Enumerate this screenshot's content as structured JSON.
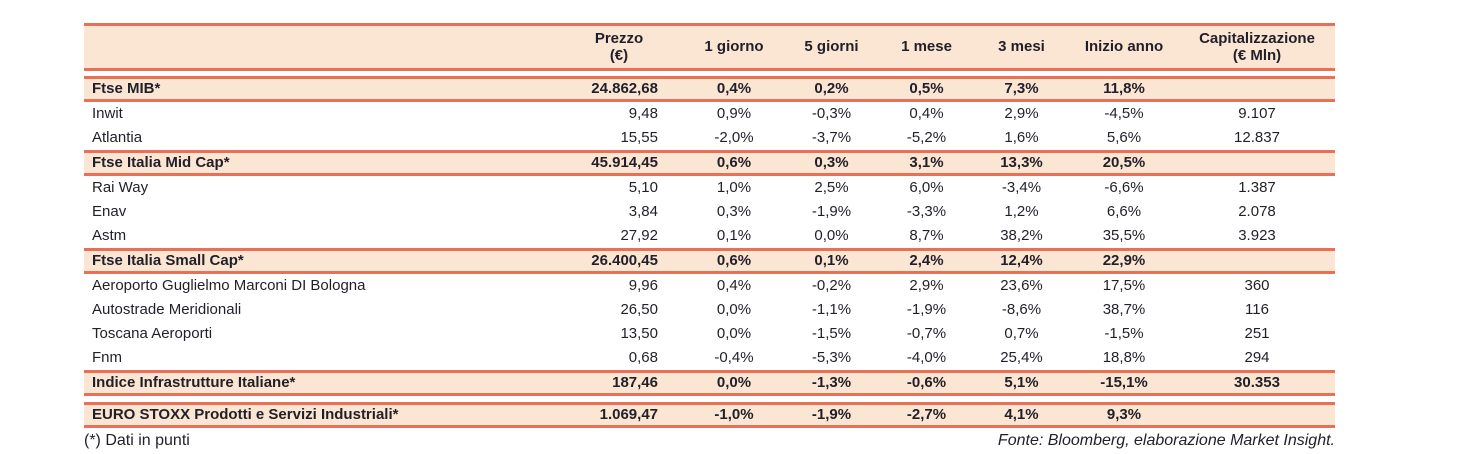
{
  "colors": {
    "accent_border": "#E96F56",
    "band_background": "#FBE5D3",
    "text": "#211F29"
  },
  "table": {
    "columns": [
      {
        "key": "name",
        "lines": [
          " "
        ]
      },
      {
        "key": "prezzo",
        "lines": [
          "Prezzo",
          "(€)"
        ]
      },
      {
        "key": "g1",
        "lines": [
          "1 giorno"
        ]
      },
      {
        "key": "g5",
        "lines": [
          "5 giorni"
        ]
      },
      {
        "key": "m1",
        "lines": [
          "1 mese"
        ]
      },
      {
        "key": "m3",
        "lines": [
          "3 mesi"
        ]
      },
      {
        "key": "ytd",
        "lines": [
          "Inizio anno"
        ]
      },
      {
        "key": "cap",
        "lines": [
          "Capitalizzazione",
          "(€ Mln)"
        ]
      }
    ],
    "rows": [
      {
        "type": "index",
        "name": "Ftse MIB*",
        "prezzo": "24.862,68",
        "g1": "0,4%",
        "g5": "0,2%",
        "m1": "0,5%",
        "m3": "7,3%",
        "ytd": "11,8%",
        "cap": ""
      },
      {
        "type": "stock",
        "name": "Inwit",
        "prezzo": "9,48",
        "g1": "0,9%",
        "g5": "-0,3%",
        "m1": "0,4%",
        "m3": "2,9%",
        "ytd": "-4,5%",
        "cap": "9.107"
      },
      {
        "type": "stock",
        "name": "Atlantia",
        "prezzo": "15,55",
        "g1": "-2,0%",
        "g5": "-3,7%",
        "m1": "-5,2%",
        "m3": "1,6%",
        "ytd": "5,6%",
        "cap": "12.837"
      },
      {
        "type": "index",
        "name": "Ftse Italia Mid Cap*",
        "prezzo": "45.914,45",
        "g1": "0,6%",
        "g5": "0,3%",
        "m1": "3,1%",
        "m3": "13,3%",
        "ytd": "20,5%",
        "cap": ""
      },
      {
        "type": "stock",
        "name": "Rai Way",
        "prezzo": "5,10",
        "g1": "1,0%",
        "g5": "2,5%",
        "m1": "6,0%",
        "m3": "-3,4%",
        "ytd": "-6,6%",
        "cap": "1.387"
      },
      {
        "type": "stock",
        "name": "Enav",
        "prezzo": "3,84",
        "g1": "0,3%",
        "g5": "-1,9%",
        "m1": "-3,3%",
        "m3": "1,2%",
        "ytd": "6,6%",
        "cap": "2.078"
      },
      {
        "type": "stock",
        "name": "Astm",
        "prezzo": "27,92",
        "g1": "0,1%",
        "g5": "0,0%",
        "m1": "8,7%",
        "m3": "38,2%",
        "ytd": "35,5%",
        "cap": "3.923"
      },
      {
        "type": "index",
        "name": "Ftse Italia Small Cap*",
        "prezzo": "26.400,45",
        "g1": "0,6%",
        "g5": "0,1%",
        "m1": "2,4%",
        "m3": "12,4%",
        "ytd": "22,9%",
        "cap": ""
      },
      {
        "type": "stock",
        "name": "Aeroporto Guglielmo Marconi DI Bologna",
        "prezzo": "9,96",
        "g1": "0,4%",
        "g5": "-0,2%",
        "m1": "2,9%",
        "m3": "23,6%",
        "ytd": "17,5%",
        "cap": "360"
      },
      {
        "type": "stock",
        "name": "Autostrade Meridionali",
        "prezzo": "26,50",
        "g1": "0,0%",
        "g5": "-1,1%",
        "m1": "-1,9%",
        "m3": "-8,6%",
        "ytd": "38,7%",
        "cap": "116"
      },
      {
        "type": "stock",
        "name": "Toscana Aeroporti",
        "prezzo": "13,50",
        "g1": "0,0%",
        "g5": "-1,5%",
        "m1": "-0,7%",
        "m3": "0,7%",
        "ytd": "-1,5%",
        "cap": "251"
      },
      {
        "type": "stock",
        "name": "Fnm",
        "prezzo": "0,68",
        "g1": "-0,4%",
        "g5": "-5,3%",
        "m1": "-4,0%",
        "m3": "25,4%",
        "ytd": "18,8%",
        "cap": "294"
      },
      {
        "type": "index",
        "name": "Indice Infrastrutture Italiane*",
        "prezzo": "187,46",
        "g1": "0,0%",
        "g5": "-1,3%",
        "m1": "-0,6%",
        "m3": "5,1%",
        "ytd": "-15,1%",
        "cap": "30.353"
      },
      {
        "type": "spacer"
      },
      {
        "type": "index",
        "name": "EURO STOXX Prodotti e Servizi Industriali*",
        "prezzo": "1.069,47",
        "g1": "-1,0%",
        "g5": "-1,9%",
        "m1": "-2,7%",
        "m3": "4,1%",
        "ytd": "9,3%",
        "cap": ""
      }
    ]
  },
  "footer": {
    "note": "(*) Dati in punti",
    "source": "Fonte: Bloomberg, elaborazione Market Insight."
  }
}
